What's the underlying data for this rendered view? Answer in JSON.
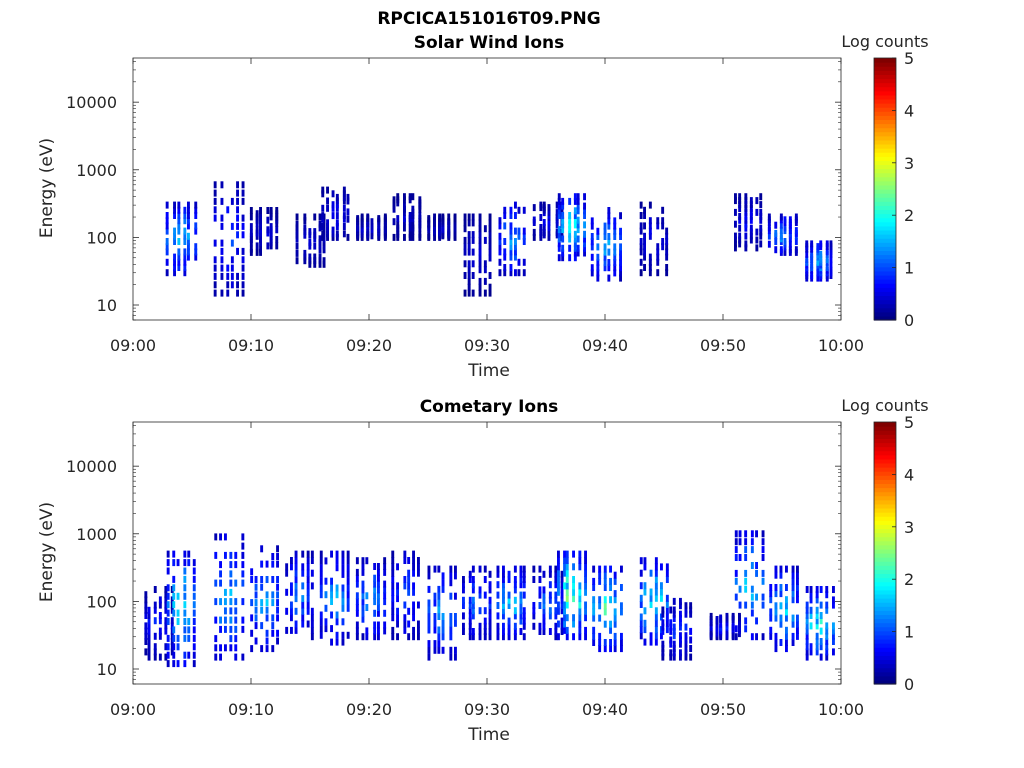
{
  "figure": {
    "title": "RPCICA151016T09.PNG"
  },
  "colorbar": {
    "label": "Log counts",
    "ticks": [
      "0",
      "1",
      "2",
      "3",
      "4",
      "5"
    ],
    "colormap": "jet",
    "range": [
      0,
      5
    ]
  },
  "chart_data": [
    {
      "type": "heatmap",
      "title": "Solar Wind Ions",
      "xlabel": "Time",
      "ylabel": "Energy (eV)",
      "x_ticks": [
        "09:00",
        "09:10",
        "09:20",
        "09:30",
        "09:40",
        "09:50",
        "10:00"
      ],
      "y_ticks": [
        "10",
        "100",
        "1000",
        "10000"
      ],
      "y_scale": "log",
      "xlim": [
        "09:00",
        "10:00"
      ],
      "ylim": [
        6,
        45000
      ],
      "z_label": "Log counts",
      "zlim": [
        0,
        5
      ],
      "bursts": [
        {
          "t": "09:04",
          "emin": 30,
          "emax": 300,
          "peak": 2.2
        },
        {
          "t": "09:08",
          "emin": 15,
          "emax": 600,
          "peak": 1.2
        },
        {
          "t": "09:11",
          "emin": 60,
          "emax": 250,
          "peak": 0.6
        },
        {
          "t": "09:15",
          "emin": 40,
          "emax": 200,
          "peak": 0.6
        },
        {
          "t": "09:17",
          "emin": 100,
          "emax": 500,
          "peak": 0.8
        },
        {
          "t": "09:20",
          "emin": 100,
          "emax": 200,
          "peak": 0.6
        },
        {
          "t": "09:23",
          "emin": 100,
          "emax": 400,
          "peak": 0.5
        },
        {
          "t": "09:26",
          "emin": 100,
          "emax": 200,
          "peak": 0.5
        },
        {
          "t": "09:29",
          "emin": 15,
          "emax": 200,
          "peak": 0.6
        },
        {
          "t": "09:32",
          "emin": 30,
          "emax": 300,
          "peak": 1.8
        },
        {
          "t": "09:35",
          "emin": 100,
          "emax": 300,
          "peak": 0.8
        },
        {
          "t": "09:37",
          "emin": 50,
          "emax": 400,
          "peak": 2.5
        },
        {
          "t": "09:40",
          "emin": 25,
          "emax": 250,
          "peak": 2.0
        },
        {
          "t": "09:44",
          "emin": 30,
          "emax": 300,
          "peak": 0.7
        },
        {
          "t": "09:52",
          "emin": 70,
          "emax": 400,
          "peak": 0.8
        },
        {
          "t": "09:55",
          "emin": 60,
          "emax": 200,
          "peak": 1.8
        },
        {
          "t": "09:58",
          "emin": 25,
          "emax": 80,
          "peak": 2.0
        }
      ]
    },
    {
      "type": "heatmap",
      "title": "Cometary Ions",
      "xlabel": "Time",
      "ylabel": "Energy (eV)",
      "x_ticks": [
        "09:00",
        "09:10",
        "09:20",
        "09:30",
        "09:40",
        "09:50",
        "10:00"
      ],
      "y_ticks": [
        "10",
        "100",
        "1000",
        "10000"
      ],
      "y_scale": "log",
      "xlim": [
        "09:00",
        "10:00"
      ],
      "ylim": [
        6,
        45000
      ],
      "z_label": "Log counts",
      "zlim": [
        0,
        5
      ],
      "bursts": [
        {
          "t": "09:02",
          "emin": 15,
          "emax": 150,
          "peak": 1.0
        },
        {
          "t": "09:04",
          "emin": 12,
          "emax": 500,
          "peak": 2.5
        },
        {
          "t": "09:08",
          "emin": 15,
          "emax": 900,
          "peak": 2.2
        },
        {
          "t": "09:11",
          "emin": 20,
          "emax": 600,
          "peak": 2.0
        },
        {
          "t": "09:14",
          "emin": 30,
          "emax": 500,
          "peak": 1.6
        },
        {
          "t": "09:17",
          "emin": 25,
          "emax": 500,
          "peak": 1.9
        },
        {
          "t": "09:20",
          "emin": 30,
          "emax": 400,
          "peak": 1.8
        },
        {
          "t": "09:23",
          "emin": 30,
          "emax": 500,
          "peak": 1.4
        },
        {
          "t": "09:26",
          "emin": 15,
          "emax": 300,
          "peak": 1.9
        },
        {
          "t": "09:29",
          "emin": 30,
          "emax": 300,
          "peak": 1.6
        },
        {
          "t": "09:32",
          "emin": 30,
          "emax": 300,
          "peak": 2.2
        },
        {
          "t": "09:35",
          "emin": 30,
          "emax": 300,
          "peak": 1.5
        },
        {
          "t": "09:37",
          "emin": 30,
          "emax": 500,
          "peak": 3.2
        },
        {
          "t": "09:40",
          "emin": 20,
          "emax": 300,
          "peak": 2.8
        },
        {
          "t": "09:44",
          "emin": 25,
          "emax": 400,
          "peak": 2.5
        },
        {
          "t": "09:46",
          "emin": 15,
          "emax": 100,
          "peak": 1.2
        },
        {
          "t": "09:50",
          "emin": 30,
          "emax": 60,
          "peak": 1.0
        },
        {
          "t": "09:52",
          "emin": 30,
          "emax": 1000,
          "peak": 2.3
        },
        {
          "t": "09:55",
          "emin": 20,
          "emax": 300,
          "peak": 2.2
        },
        {
          "t": "09:58",
          "emin": 15,
          "emax": 150,
          "peak": 2.5
        }
      ]
    }
  ]
}
